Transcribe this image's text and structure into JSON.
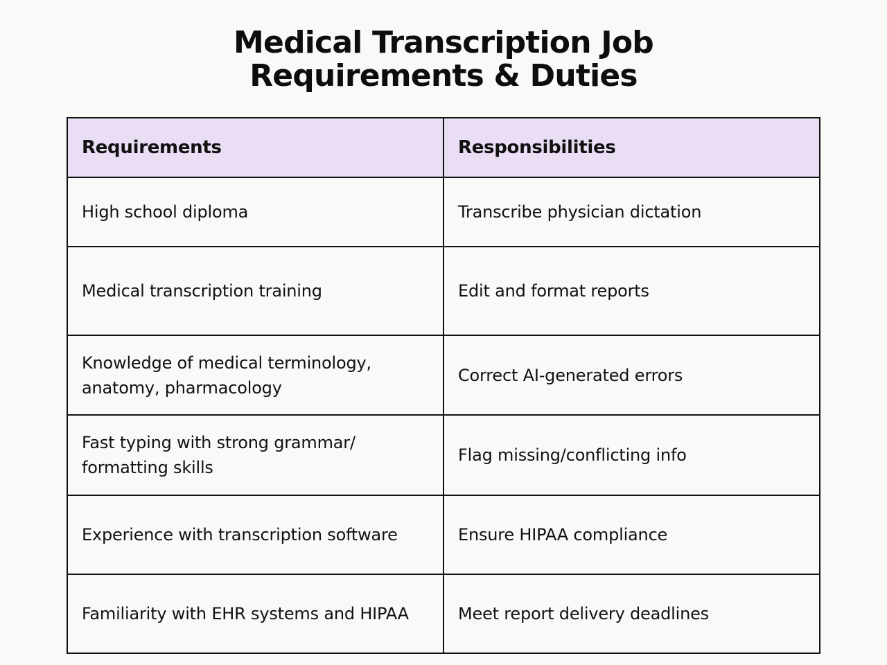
{
  "title": {
    "line1": "Medical Transcription Job",
    "line2": "Requirements & Duties"
  },
  "table": {
    "headers": {
      "requirements": "Requirements",
      "responsibilities": "Responsibilities"
    },
    "rows": [
      {
        "requirement": "High school diploma",
        "responsibility": "Transcribe physician dictation"
      },
      {
        "requirement": "Medical transcription training",
        "responsibility": "Edit and format reports"
      },
      {
        "requirement": "Knowledge of medical terminology, anatomy, pharmacology",
        "responsibility": "Correct AI-generated errors"
      },
      {
        "requirement": "Fast typing with strong grammar/ formatting skills",
        "responsibility": "Flag missing/conflicting info"
      },
      {
        "requirement": "Experience with transcription software",
        "responsibility": "Ensure HIPAA compliance"
      },
      {
        "requirement": "Familiarity with EHR systems and HIPAA",
        "responsibility": "Meet report delivery deadlines"
      }
    ]
  }
}
